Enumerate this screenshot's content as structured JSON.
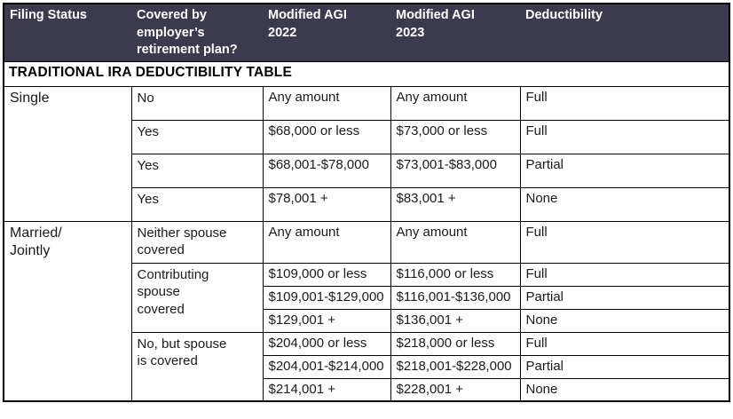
{
  "title": "TRADITIONAL IRA DEDUCTIBILITY TABLE",
  "colors": {
    "header_bg": "#3b3a4e",
    "header_text": "#ffffff",
    "border": "#000000",
    "body_bg": "#ffffff"
  },
  "header": {
    "cols": [
      "Filing Status",
      "Covered by\nemployer’s\nretirement plan?",
      "Modified AGI\n2022",
      "Modified AGI\n2023",
      "Deductibility"
    ]
  },
  "single": {
    "label": "Single",
    "rows": [
      {
        "covered": "No",
        "agi2022": "Any amount",
        "agi2023": "Any amount",
        "ded": "Full"
      },
      {
        "covered": "Yes",
        "agi2022": "$68,000 or less",
        "agi2023": "$73,000 or less",
        "ded": "Full"
      },
      {
        "covered": "Yes",
        "agi2022": "$68,001-$78,000",
        "agi2023": "$73,001-$83,000",
        "ded": "Partial"
      },
      {
        "covered": "Yes",
        "agi2022": "$78,001 +",
        "agi2023": "$83,001 +",
        "ded": "None"
      }
    ]
  },
  "married": {
    "label": "Married/\nJointly",
    "neither": {
      "covered": "Neither spouse\ncovered",
      "agi2022": "Any amount",
      "agi2023": "Any amount",
      "ded": "Full"
    },
    "contributing": {
      "covered": "Contributing\nspouse\ncovered",
      "rows": [
        {
          "agi2022": "$109,000 or less",
          "agi2023": "$116,000 or less",
          "ded": "Full"
        },
        {
          "agi2022": "$109,001-$129,000",
          "agi2023": "$116,001-$136,000",
          "ded": "Partial"
        },
        {
          "agi2022": "$129,001 +",
          "agi2023": "$136,001 +",
          "ded": "None"
        }
      ]
    },
    "spouse_covered": {
      "covered": "No, but spouse\nis covered",
      "rows": [
        {
          "agi2022": "$204,000 or less",
          "agi2023": "$218,000 or less",
          "ded": "Full"
        },
        {
          "agi2022": "$204,001-$214,000",
          "agi2023": "$218,001-$228,000",
          "ded": "Partial"
        },
        {
          "agi2022": "$214,001 +",
          "agi2023": "$228,001 +",
          "ded": "None"
        }
      ]
    }
  }
}
